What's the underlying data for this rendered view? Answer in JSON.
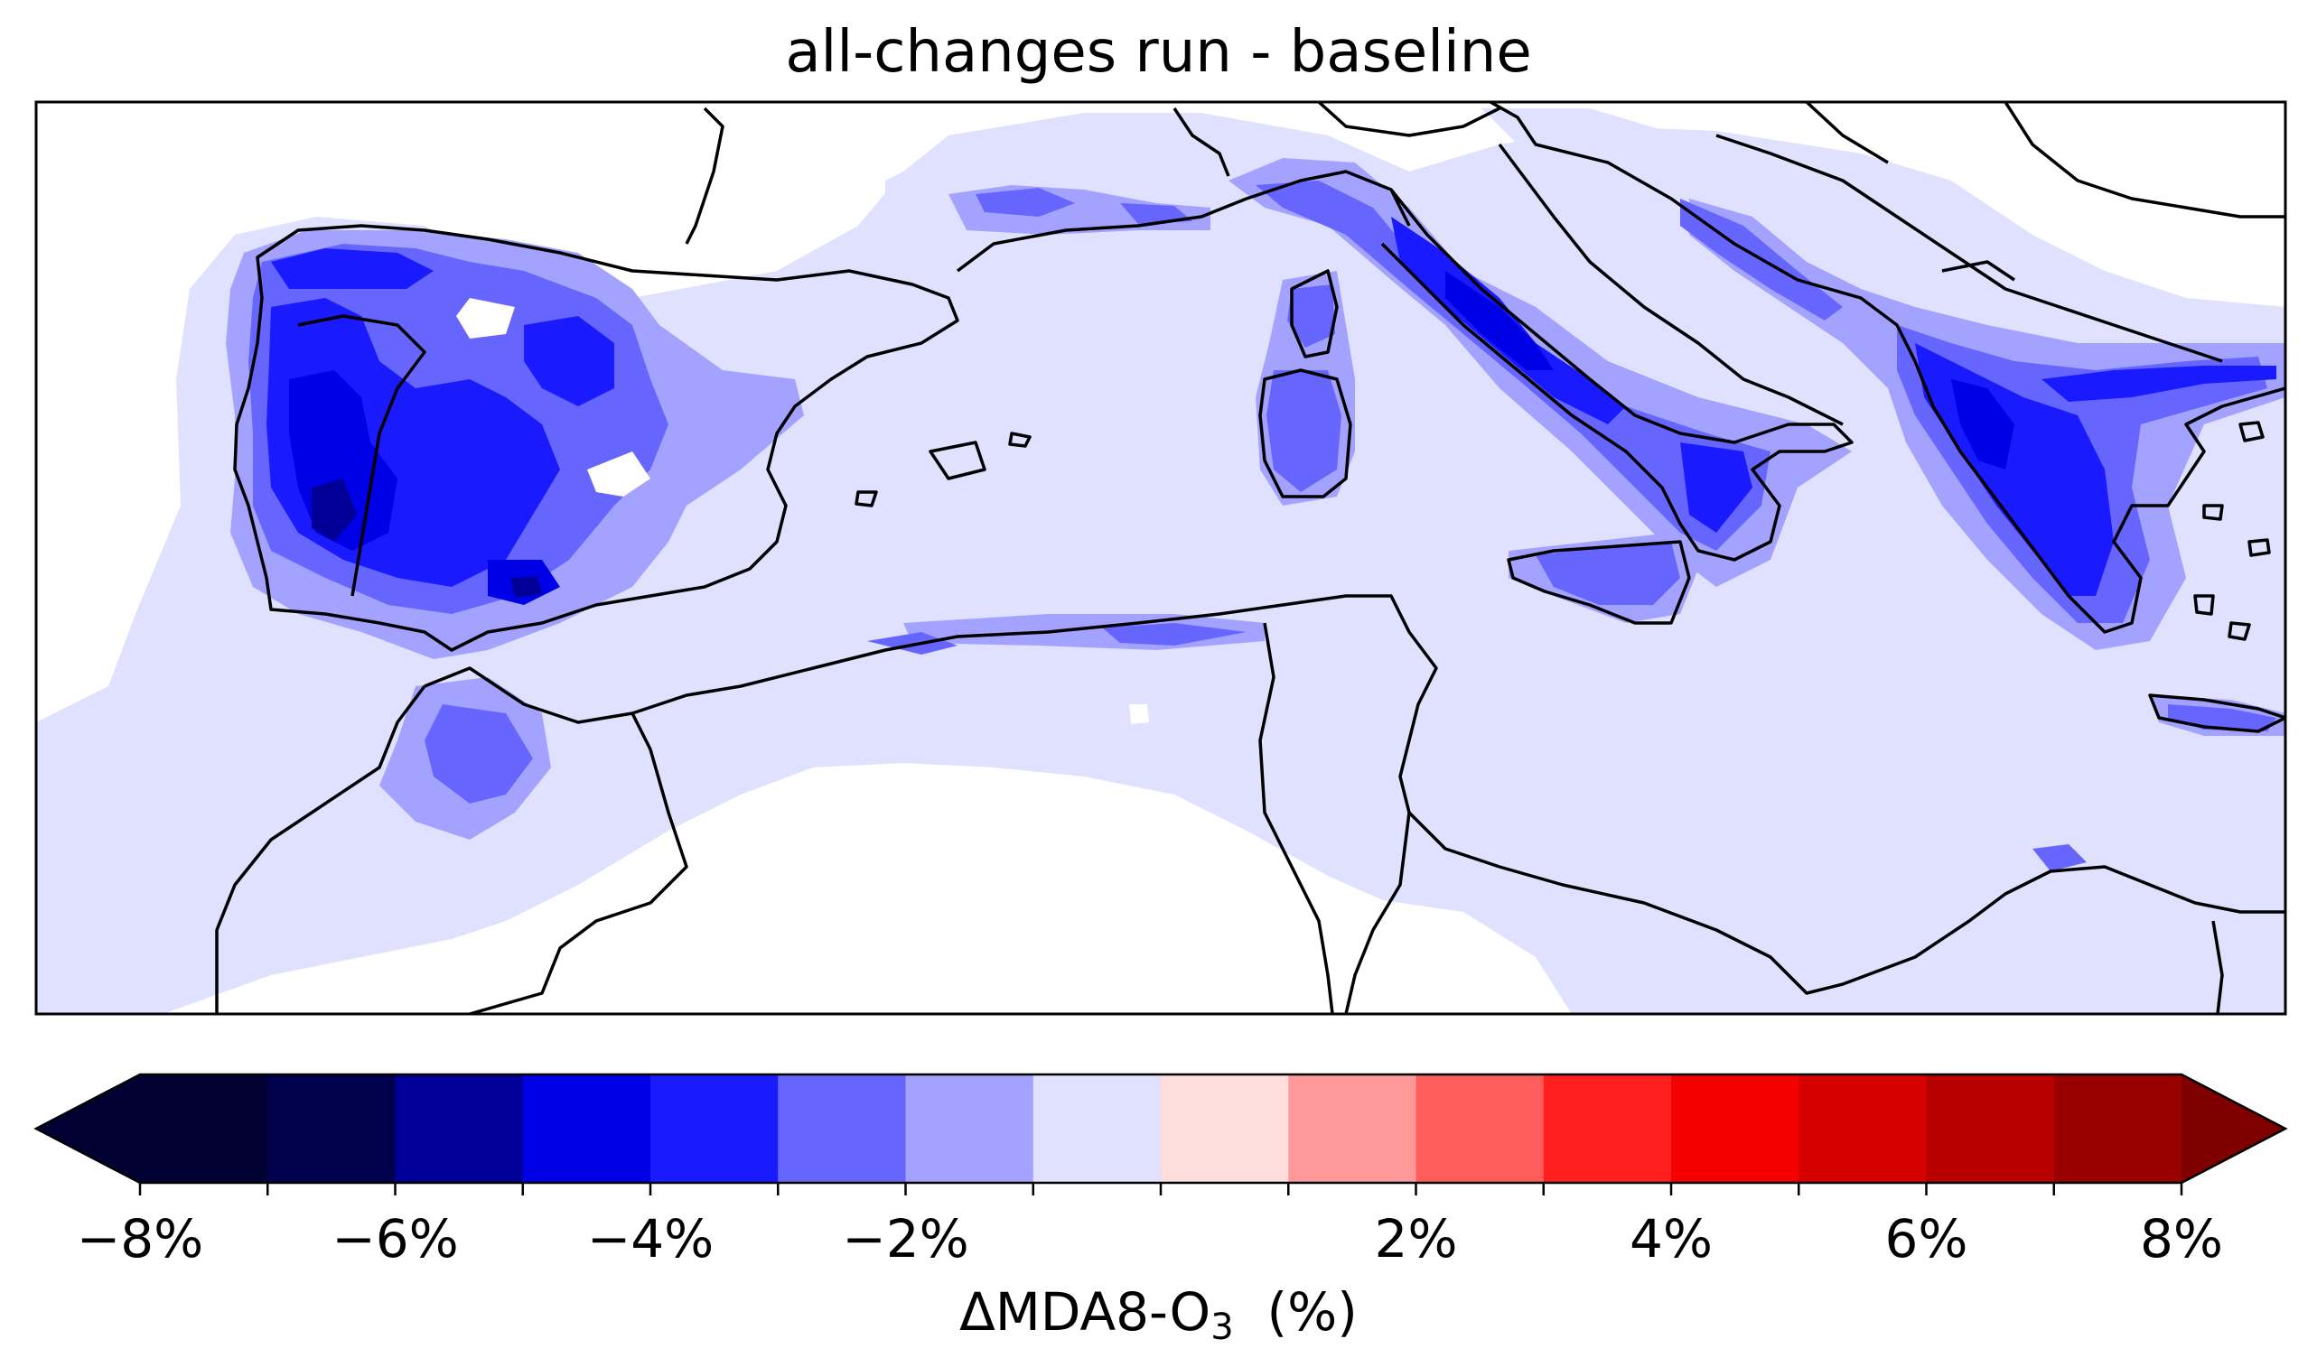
{
  "title": "all-changes run - baseline",
  "colorbar": {
    "label_prefix": "ΔMDA8-O",
    "label_sub": "3",
    "label_suffix": "  (%)",
    "range": [
      -8,
      8
    ],
    "step": 1,
    "extend": "both",
    "colors": [
      "#000033",
      "#00004c",
      "#000099",
      "#0000e6",
      "#1a1aff",
      "#6666ff",
      "#a3a3ff",
      "#e0e0ff",
      "#ffdddd",
      "#ff9999",
      "#ff5c5c",
      "#ff1f1f",
      "#f50000",
      "#d60000",
      "#b80000",
      "#990000",
      "#800000"
    ],
    "tick_labels": [
      "−8%",
      "−6%",
      "−4%",
      "−2%",
      "2%",
      "4%",
      "6%",
      "8%"
    ],
    "tick_values": [
      -8,
      -6,
      -4,
      -2,
      2,
      4,
      6,
      8
    ]
  },
  "map": {
    "region": "Mediterranean",
    "ocean_fill": "#e0e0ff",
    "land_outside_fill": "#ffffff",
    "coastline_color": "#000000"
  }
}
